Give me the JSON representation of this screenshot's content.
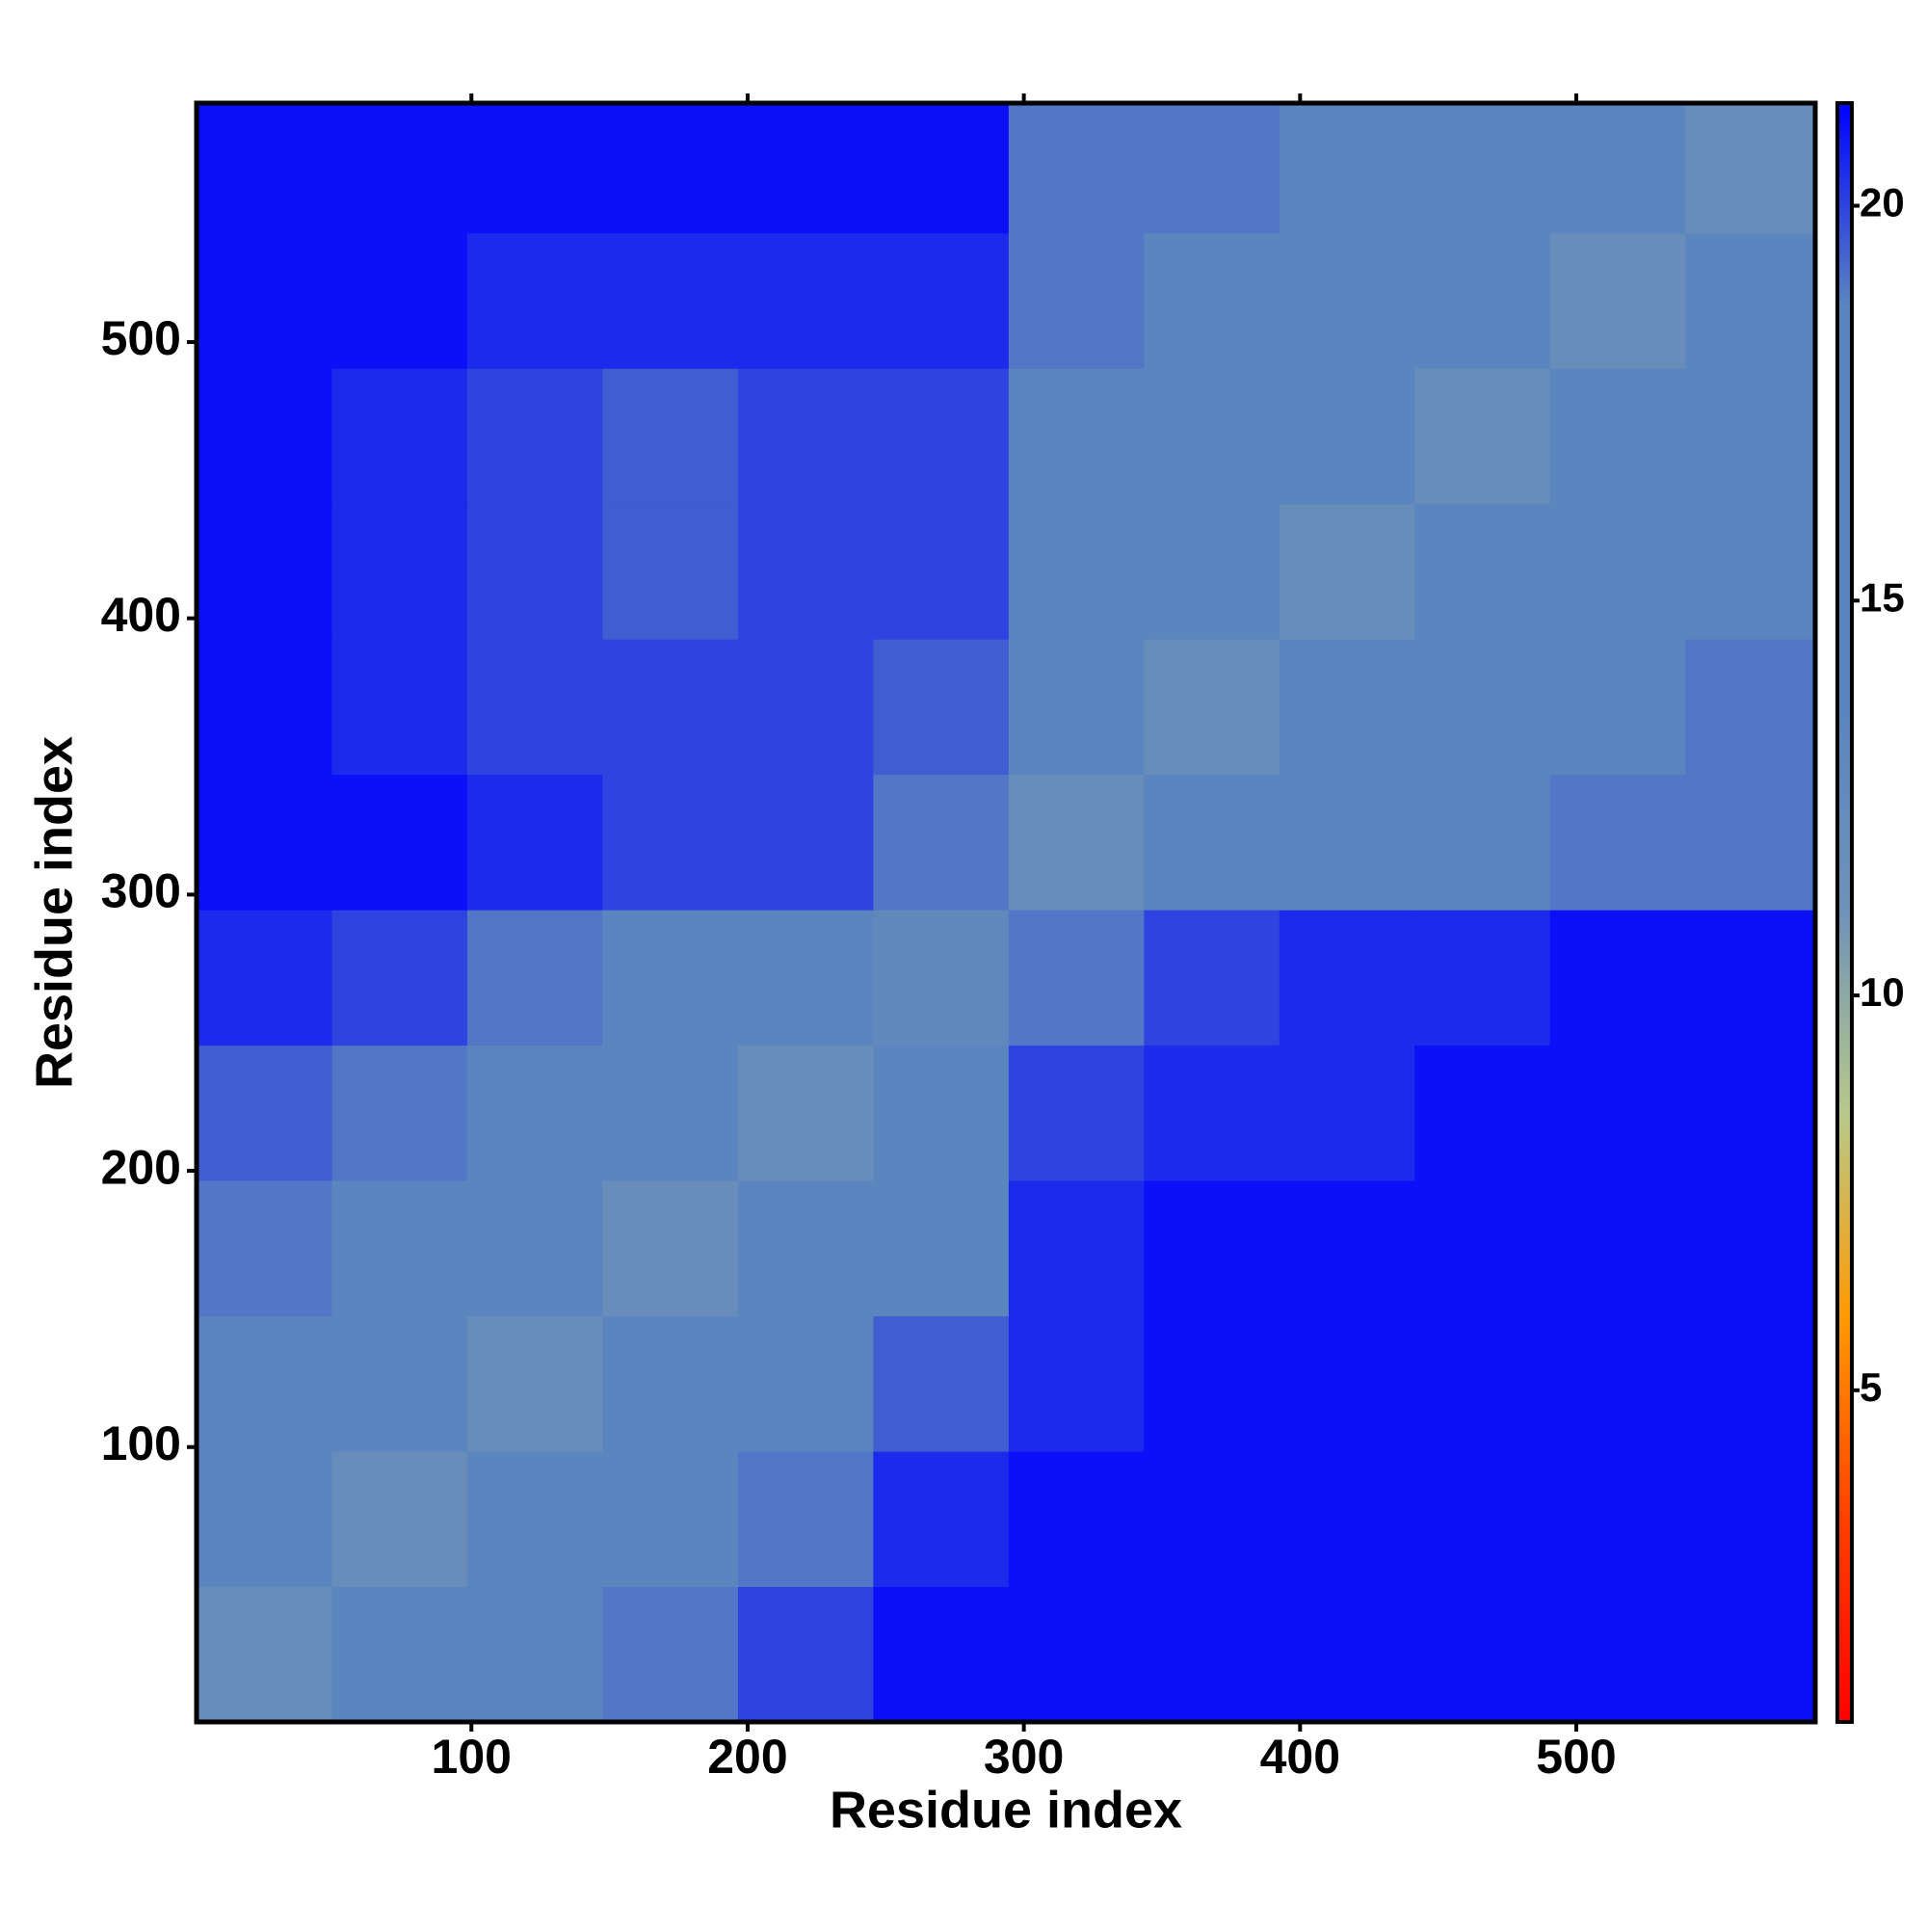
{
  "chart_data": {
    "type": "heatmap",
    "x_label": "Residue index",
    "y_label": "Residue index",
    "x_edges": [
      0.5,
      49.5,
      98.5,
      147.5,
      196.5,
      245.5,
      294.5,
      343.5,
      392.5,
      441.5,
      490.5,
      539.5,
      586.5
    ],
    "y_edges": [
      0.5,
      49.5,
      98.5,
      147.5,
      196.5,
      245.5,
      294.5,
      343.5,
      392.5,
      441.5,
      490.5,
      539.5,
      586.5
    ],
    "values": [
      [
        12,
        17,
        18,
        19,
        20,
        21,
        21,
        21,
        21,
        21,
        21,
        21
      ],
      [
        17,
        12,
        17,
        18,
        19,
        20.5,
        21,
        21,
        21,
        21,
        21,
        21
      ],
      [
        18,
        17,
        12,
        16,
        18,
        19.5,
        20.5,
        21,
        21,
        21,
        21,
        21
      ],
      [
        19,
        18,
        16,
        12,
        16,
        18,
        20.5,
        21,
        21,
        21,
        21,
        21
      ],
      [
        19.5,
        19,
        18,
        16,
        12,
        16,
        20,
        20.5,
        20.5,
        21,
        21,
        21
      ],
      [
        20.5,
        20,
        19,
        18,
        16,
        13,
        19,
        20,
        20.5,
        20.5,
        21,
        21
      ],
      [
        21,
        21,
        20.5,
        20,
        20,
        19,
        12,
        16,
        18,
        18.5,
        19,
        19
      ],
      [
        21,
        20.5,
        20,
        20,
        20,
        19.5,
        16,
        12,
        16,
        18,
        18.5,
        19
      ],
      [
        21,
        20.5,
        20,
        19.5,
        20,
        20,
        18,
        16,
        12,
        16,
        18,
        18.5
      ],
      [
        21,
        20.5,
        20,
        19.5,
        20,
        20,
        18.5,
        18,
        16,
        12,
        16,
        18
      ],
      [
        21,
        21,
        20.5,
        20.5,
        20.5,
        20.5,
        19,
        18.5,
        18,
        16,
        12,
        16
      ],
      [
        21,
        21,
        21,
        21,
        21,
        21,
        19,
        19,
        18.5,
        18,
        16,
        12
      ]
    ],
    "xlim": [
      0.5,
      586.5
    ],
    "ylim": [
      0.5,
      586.5
    ],
    "xticks": [
      100,
      200,
      300,
      400,
      500
    ],
    "yticks": [
      100,
      200,
      300,
      400,
      500
    ],
    "clim": [
      0.8,
      21.3
    ],
    "cticks": [
      5,
      10,
      15,
      20
    ],
    "colormap": [
      "#ff0000",
      "#ff4000",
      "#ff9a00",
      "#b8c98a",
      "#6f92b8",
      "#5b85bf",
      "#5b85bf",
      "#5b85bf",
      "#0000ff"
    ]
  }
}
